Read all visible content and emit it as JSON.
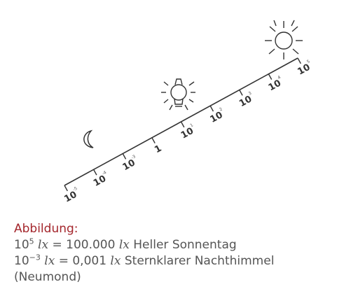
{
  "scale": {
    "base": "10",
    "ticks": [
      {
        "label": "10",
        "exp": "-5"
      },
      {
        "label": "10",
        "exp": "-4"
      },
      {
        "label": "10",
        "exp": "-3"
      },
      {
        "label": "1",
        "exp": ""
      },
      {
        "label": "10",
        "exp": "1"
      },
      {
        "label": "10",
        "exp": "2"
      },
      {
        "label": "10",
        "exp": "3"
      },
      {
        "label": "10",
        "exp": "4"
      },
      {
        "label": "10",
        "exp": "5"
      }
    ],
    "icons": {
      "low": "moon-icon",
      "mid": "lightbulb-icon",
      "high": "sun-icon"
    },
    "stroke_color": "#333333"
  },
  "caption": {
    "title": "Abbildung:",
    "line1": {
      "base": "10",
      "exp": "5",
      "unit1": "lx",
      "equals": " = 100.000 ",
      "unit2": "lx",
      "desc": " Heller Sonnentag"
    },
    "line2": {
      "base": "10",
      "exp": "−3",
      "unit1": "lx",
      "equals": " = 0,001 ",
      "unit2": "lx",
      "desc": " Sternklarer Nachthimmel"
    },
    "line3": "(Neumond)",
    "title_color": "#a4262c",
    "text_color": "#555555"
  }
}
